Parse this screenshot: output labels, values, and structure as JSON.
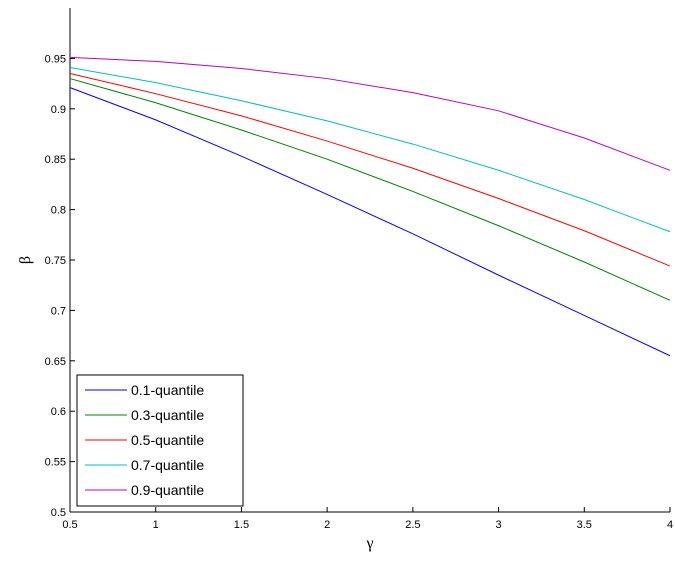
{
  "chart_data": {
    "type": "line",
    "x_label": "γ",
    "y_label": "β",
    "x": [
      0.5,
      1,
      1.5,
      2,
      2.5,
      3,
      3.5,
      4
    ],
    "series": [
      {
        "name": "0.1-quantile",
        "color": "#0000ff",
        "values": [
          0.921,
          0.889,
          0.853,
          0.815,
          0.776,
          0.735,
          0.695,
          0.655
        ]
      },
      {
        "name": "0.3-quantile",
        "color": "#008000",
        "values": [
          0.93,
          0.906,
          0.879,
          0.85,
          0.818,
          0.784,
          0.748,
          0.71
        ]
      },
      {
        "name": "0.5-quantile",
        "color": "#ff0000",
        "values": [
          0.935,
          0.915,
          0.893,
          0.868,
          0.841,
          0.811,
          0.779,
          0.744
        ]
      },
      {
        "name": "0.7-quantile",
        "color": "#00bfbf",
        "values": [
          0.941,
          0.926,
          0.908,
          0.888,
          0.865,
          0.839,
          0.81,
          0.778
        ]
      },
      {
        "name": "0.9-quantile",
        "color": "#bf00bf",
        "values": [
          0.951,
          0.947,
          0.94,
          0.93,
          0.916,
          0.898,
          0.871,
          0.839
        ]
      }
    ],
    "xlim": [
      0.5,
      4
    ],
    "xticks": [
      0.5,
      1,
      1.5,
      2,
      2.5,
      3,
      3.5,
      4
    ],
    "ylim": [
      0.5,
      1
    ],
    "yticks": [
      0.5,
      0.55,
      0.6,
      0.65,
      0.7,
      0.75,
      0.8,
      0.85,
      0.9,
      0.95
    ],
    "legend": "lower left"
  }
}
